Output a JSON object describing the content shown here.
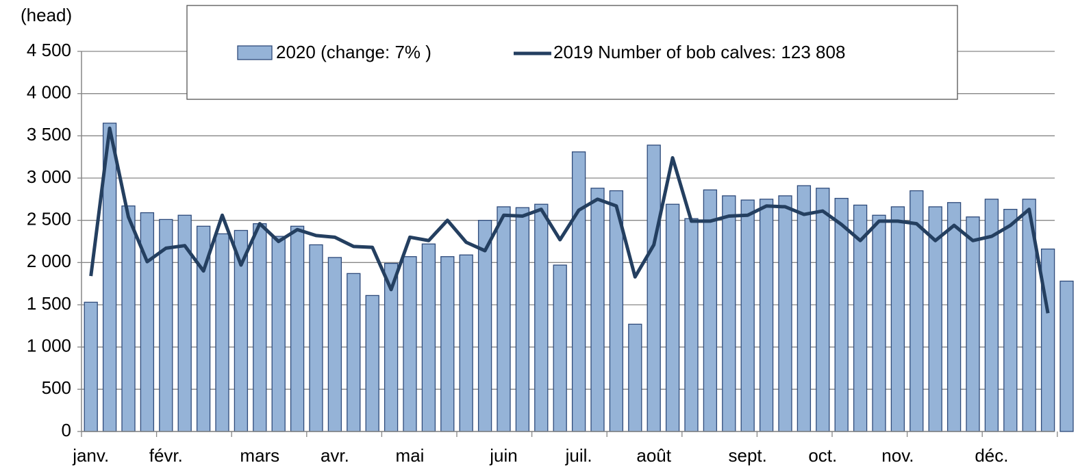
{
  "chart_data": {
    "type": "bar_line",
    "y_axis_label": "(head)",
    "categories": [
      "janv.",
      null,
      null,
      null,
      "févr.",
      null,
      null,
      null,
      null,
      "mars",
      null,
      null,
      null,
      "avr.",
      null,
      null,
      null,
      "mai",
      null,
      null,
      null,
      null,
      "juin",
      null,
      null,
      null,
      "juil.",
      null,
      null,
      null,
      "août",
      null,
      null,
      null,
      null,
      "sept.",
      null,
      null,
      null,
      "oct.",
      null,
      null,
      null,
      "nov.",
      null,
      null,
      null,
      null,
      "déc.",
      null,
      null,
      null,
      null
    ],
    "series": [
      {
        "name": "2020 (change: 7% )",
        "type": "bar",
        "color": "#95b3d7",
        "edge_color": "#2e4a7a",
        "values": [
          1530,
          3650,
          2670,
          2590,
          2510,
          2560,
          2430,
          2340,
          2380,
          2460,
          2310,
          2430,
          2210,
          2060,
          1870,
          1610,
          1990,
          2070,
          2220,
          2070,
          2090,
          2500,
          2660,
          2650,
          2690,
          1970,
          3310,
          2880,
          2850,
          1270,
          3390,
          2690,
          2520,
          2860,
          2790,
          2740,
          2750,
          2790,
          2910,
          2880,
          2760,
          2680,
          2560,
          2660,
          2850,
          2660,
          2710,
          2540,
          2750,
          2630,
          2750,
          2160,
          1780
        ]
      },
      {
        "name": "2019 Number of bob calves: 123 808",
        "type": "line",
        "color": "#243f60",
        "values": [
          1840,
          3590,
          2540,
          2010,
          2170,
          2200,
          1900,
          2560,
          1970,
          2460,
          2250,
          2390,
          2320,
          2300,
          2190,
          2180,
          1680,
          2300,
          2260,
          2500,
          2240,
          2140,
          2560,
          2550,
          2630,
          2270,
          2620,
          2750,
          2670,
          1830,
          2210,
          3240,
          2490,
          2490,
          2550,
          2560,
          2670,
          2660,
          2570,
          2610,
          2450,
          2260,
          2490,
          2490,
          2460,
          2260,
          2440,
          2260,
          2310,
          2440,
          2630,
          1400,
          null
        ]
      }
    ],
    "ylim": [
      0,
      4500
    ],
    "yticks": [
      0,
      500,
      {
        "value": 1000,
        "label": "1 000"
      },
      {
        "value": 1500,
        "label": "1 500"
      },
      {
        "value": 2000,
        "label": "2 000"
      },
      {
        "value": 2500,
        "label": "2 500"
      },
      {
        "value": 3000,
        "label": "3 000"
      },
      {
        "value": 3500,
        "label": "3 500"
      },
      {
        "value": 4000,
        "label": "4 000"
      },
      {
        "value": 4500,
        "label": "4 500"
      }
    ],
    "grid": true
  }
}
